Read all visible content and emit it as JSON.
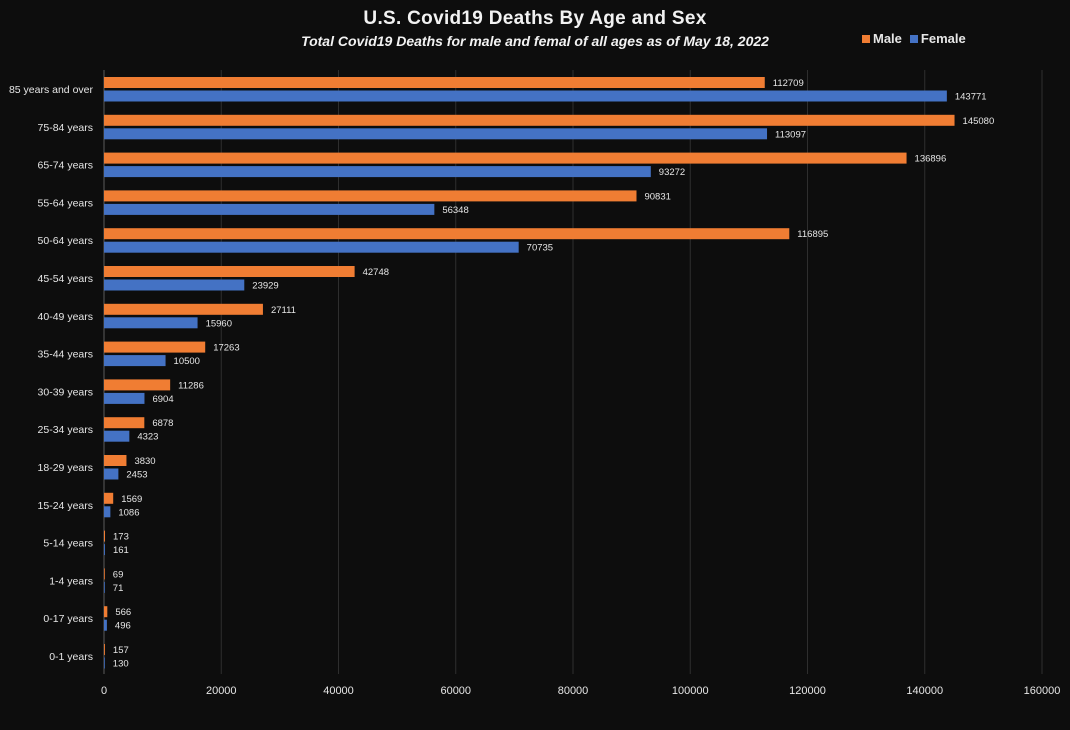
{
  "chart_data": {
    "type": "bar",
    "orientation": "horizontal",
    "title": "U.S. Covid19 Deaths By Age and Sex",
    "subtitle": "Total Covid19 Deaths for male and femal of all ages as of May 18, 2022",
    "xlabel": "",
    "ylabel": "",
    "xlim": [
      0,
      160000
    ],
    "x_ticks": [
      0,
      20000,
      40000,
      60000,
      80000,
      100000,
      120000,
      140000,
      160000
    ],
    "grid": "vertical",
    "legend_position": "top-right",
    "categories": [
      "85 years and over",
      "75-84 years",
      "65-74 years",
      "55-64 years",
      "50-64 years",
      "45-54 years",
      "40-49 years",
      "35-44 years",
      "30-39 years",
      "25-34 years",
      "18-29 years",
      "15-24 years",
      "5-14 years",
      "1-4 years",
      "0-17 years",
      "0-1 years"
    ],
    "series": [
      {
        "name": "Male",
        "color": "#f07d33",
        "values": [
          112709,
          145080,
          136896,
          90831,
          116895,
          42748,
          27111,
          17263,
          11286,
          6878,
          3830,
          1569,
          173,
          69,
          566,
          157
        ]
      },
      {
        "name": "Female",
        "color": "#4472c4",
        "values": [
          143771,
          113097,
          93272,
          56348,
          70735,
          23929,
          15960,
          10500,
          6904,
          4323,
          2453,
          1086,
          161,
          71,
          496,
          130
        ]
      }
    ]
  },
  "colors": {
    "background": "#0d0d0d",
    "gridline": "#2e2e2e",
    "text": "#e6e6e6"
  }
}
